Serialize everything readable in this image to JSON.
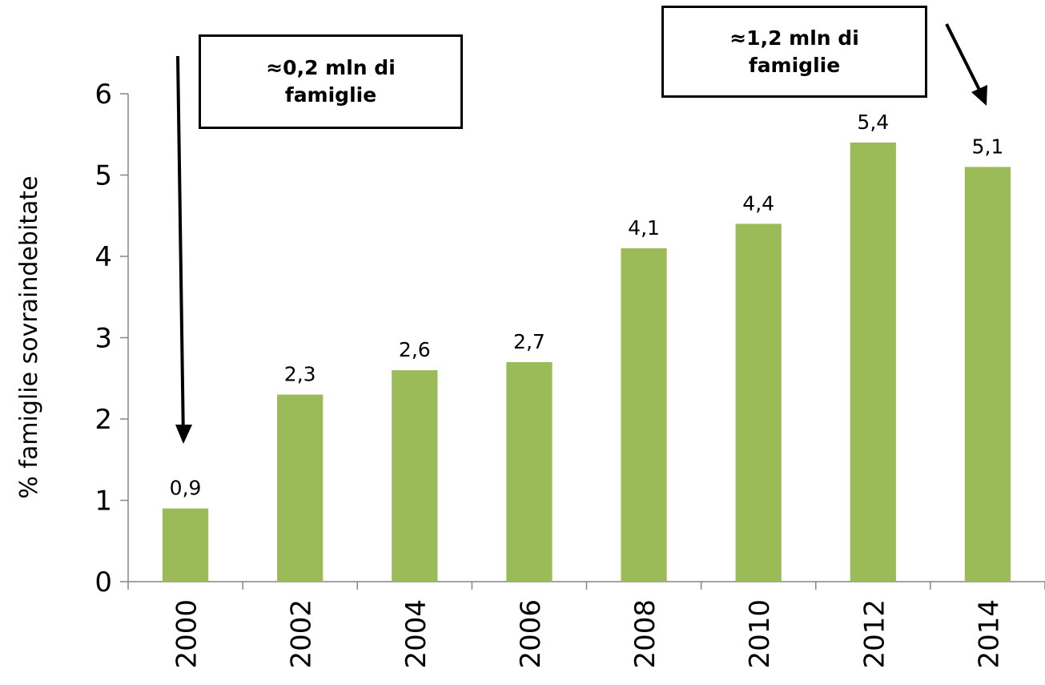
{
  "chart_data": {
    "type": "bar",
    "categories": [
      "2000",
      "2002",
      "2004",
      "2006",
      "2008",
      "2010",
      "2012",
      "2014"
    ],
    "values": [
      0.9,
      2.3,
      2.6,
      2.7,
      4.1,
      4.4,
      5.4,
      5.1
    ],
    "value_labels": [
      "0,9",
      "2,3",
      "2,6",
      "2,7",
      "4,1",
      "4,4",
      "5,4",
      "5,1"
    ],
    "ylabel": "% famiglie sovraindebitate",
    "ylim": [
      0,
      6
    ],
    "yticks": [
      "0",
      "1",
      "2",
      "3",
      "4",
      "5",
      "6"
    ],
    "grid": false,
    "bar_color": "#9bbb59",
    "annotations": [
      {
        "text": "≈0,2 mln di famiglie",
        "points_to": "2000"
      },
      {
        "text": "≈1,2 mln di famiglie",
        "points_to": "2014"
      }
    ]
  }
}
